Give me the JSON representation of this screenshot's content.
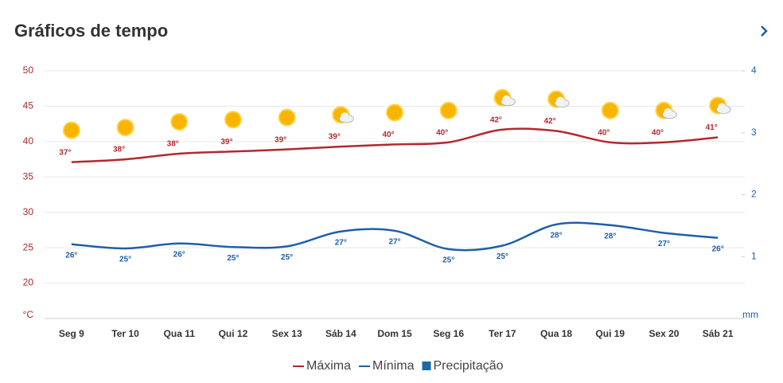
{
  "chart_data": {
    "type": "line",
    "title": "Gráficos de tempo",
    "y_unit": "°C",
    "y2_unit": "mm",
    "categories": [
      "Seg 9",
      "Ter 10",
      "Qua 11",
      "Qui 12",
      "Sex 13",
      "Sáb 14",
      "Dom 15",
      "Seg 16",
      "Ter 17",
      "Qua 18",
      "Qui 19",
      "Sex 20",
      "Sáb 21"
    ],
    "icons": [
      "sunny",
      "sunny",
      "sunny",
      "sunny",
      "sunny",
      "partly-cloudy",
      "sunny",
      "sunny",
      "partly-cloudy",
      "partly-cloudy",
      "sunny",
      "partly-cloudy",
      "partly-cloudy"
    ],
    "series": [
      {
        "name": "Máxima",
        "color": "#b5282e",
        "values": [
          37.1,
          37.5,
          38.3,
          38.6,
          38.9,
          39.3,
          39.6,
          39.9,
          41.7,
          41.5,
          39.9,
          39.9,
          40.6
        ],
        "value_labels": [
          "37°",
          "38°",
          "38°",
          "39°",
          "39°",
          "39°",
          "40°",
          "40°",
          "42°",
          "42°",
          "40°",
          "40°",
          "41°"
        ]
      },
      {
        "name": "Mínima",
        "color": "#1f5fa8",
        "values": [
          25.5,
          24.9,
          25.6,
          25.1,
          25.2,
          27.3,
          27.4,
          24.8,
          25.3,
          28.3,
          28.2,
          27.1,
          26.4
        ],
        "value_labels": [
          "26°",
          "25°",
          "26°",
          "25°",
          "25°",
          "27°",
          "27°",
          "25°",
          "25°",
          "28°",
          "28°",
          "27°",
          "26°"
        ]
      },
      {
        "name": "Precipitação",
        "color": "#1a6aa5",
        "type": "bar",
        "axis": "y2",
        "values": [
          0,
          0,
          0,
          0,
          0,
          0,
          0,
          0,
          0,
          0,
          0,
          0,
          0
        ]
      }
    ],
    "ylim": [
      15,
      50
    ],
    "yticks": [
      20,
      25,
      30,
      35,
      40,
      45,
      50
    ],
    "y2lim": [
      0,
      4
    ],
    "y2ticks": [
      1,
      2,
      3,
      4
    ],
    "grid": true
  }
}
